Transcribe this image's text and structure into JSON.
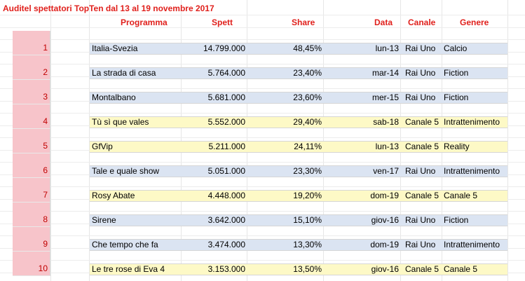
{
  "title": "Auditel spettatori TopTen dal 13 al 19 novembre 2017",
  "headers": {
    "programma": "Programma",
    "spett": "Spett",
    "share": "Share",
    "data": "Data",
    "canale": "Canale",
    "genere": "Genere"
  },
  "colors": {
    "title_red": "#e0201c",
    "rank_fill": "#f7c4ca",
    "rai_band": "#dbe4f2",
    "mediaset_band": "#fdf9c6"
  },
  "rows": [
    {
      "rank": "1",
      "programma": "Italia-Svezia",
      "spett": "14.799.000",
      "share": "48,45%",
      "data": "lun-13",
      "canale": "Rai Uno",
      "genere": "Calcio",
      "band": "blue"
    },
    {
      "rank": "2",
      "programma": "La strada di casa",
      "spett": "5.764.000",
      "share": "23,40%",
      "data": "mar-14",
      "canale": "Rai Uno",
      "genere": "Fiction",
      "band": "blue"
    },
    {
      "rank": "3",
      "programma": "Montalbano",
      "spett": "5.681.000",
      "share": "23,60%",
      "data": "mer-15",
      "canale": "Rai Uno",
      "genere": "Fiction",
      "band": "blue"
    },
    {
      "rank": "4",
      "programma": "Tù sì que vales",
      "spett": "5.552.000",
      "share": "29,40%",
      "data": "sab-18",
      "canale": "Canale 5",
      "genere": "Intrattenimento",
      "band": "yellow"
    },
    {
      "rank": "5",
      "programma": "GfVip",
      "spett": "5.211.000",
      "share": "24,11%",
      "data": "lun-13",
      "canale": "Canale 5",
      "genere": "Reality",
      "band": "yellow"
    },
    {
      "rank": "6",
      "programma": "Tale e quale show",
      "spett": "5.051.000",
      "share": "23,30%",
      "data": "ven-17",
      "canale": "Rai Uno",
      "genere": "Intrattenimento",
      "band": "blue"
    },
    {
      "rank": "7",
      "programma": "Rosy Abate",
      "spett": "4.448.000",
      "share": "19,20%",
      "data": "dom-19",
      "canale": "Canale 5",
      "genere": "Canale 5",
      "band": "yellow"
    },
    {
      "rank": "8",
      "programma": "Sirene",
      "spett": "3.642.000",
      "share": "15,10%",
      "data": "giov-16",
      "canale": "Rai Uno",
      "genere": "Fiction",
      "band": "blue"
    },
    {
      "rank": "9",
      "programma": "Che tempo che fa",
      "spett": "3.474.000",
      "share": "13,30%",
      "data": "dom-19",
      "canale": "Rai Uno",
      "genere": "Intrattenimento",
      "band": "blue"
    },
    {
      "rank": "10",
      "programma": "Le tre rose di Eva 4",
      "spett": "3.153.000",
      "share": "13,50%",
      "data": "giov-16",
      "canale": "Canale 5",
      "genere": "Canale 5",
      "band": "yellow"
    }
  ]
}
